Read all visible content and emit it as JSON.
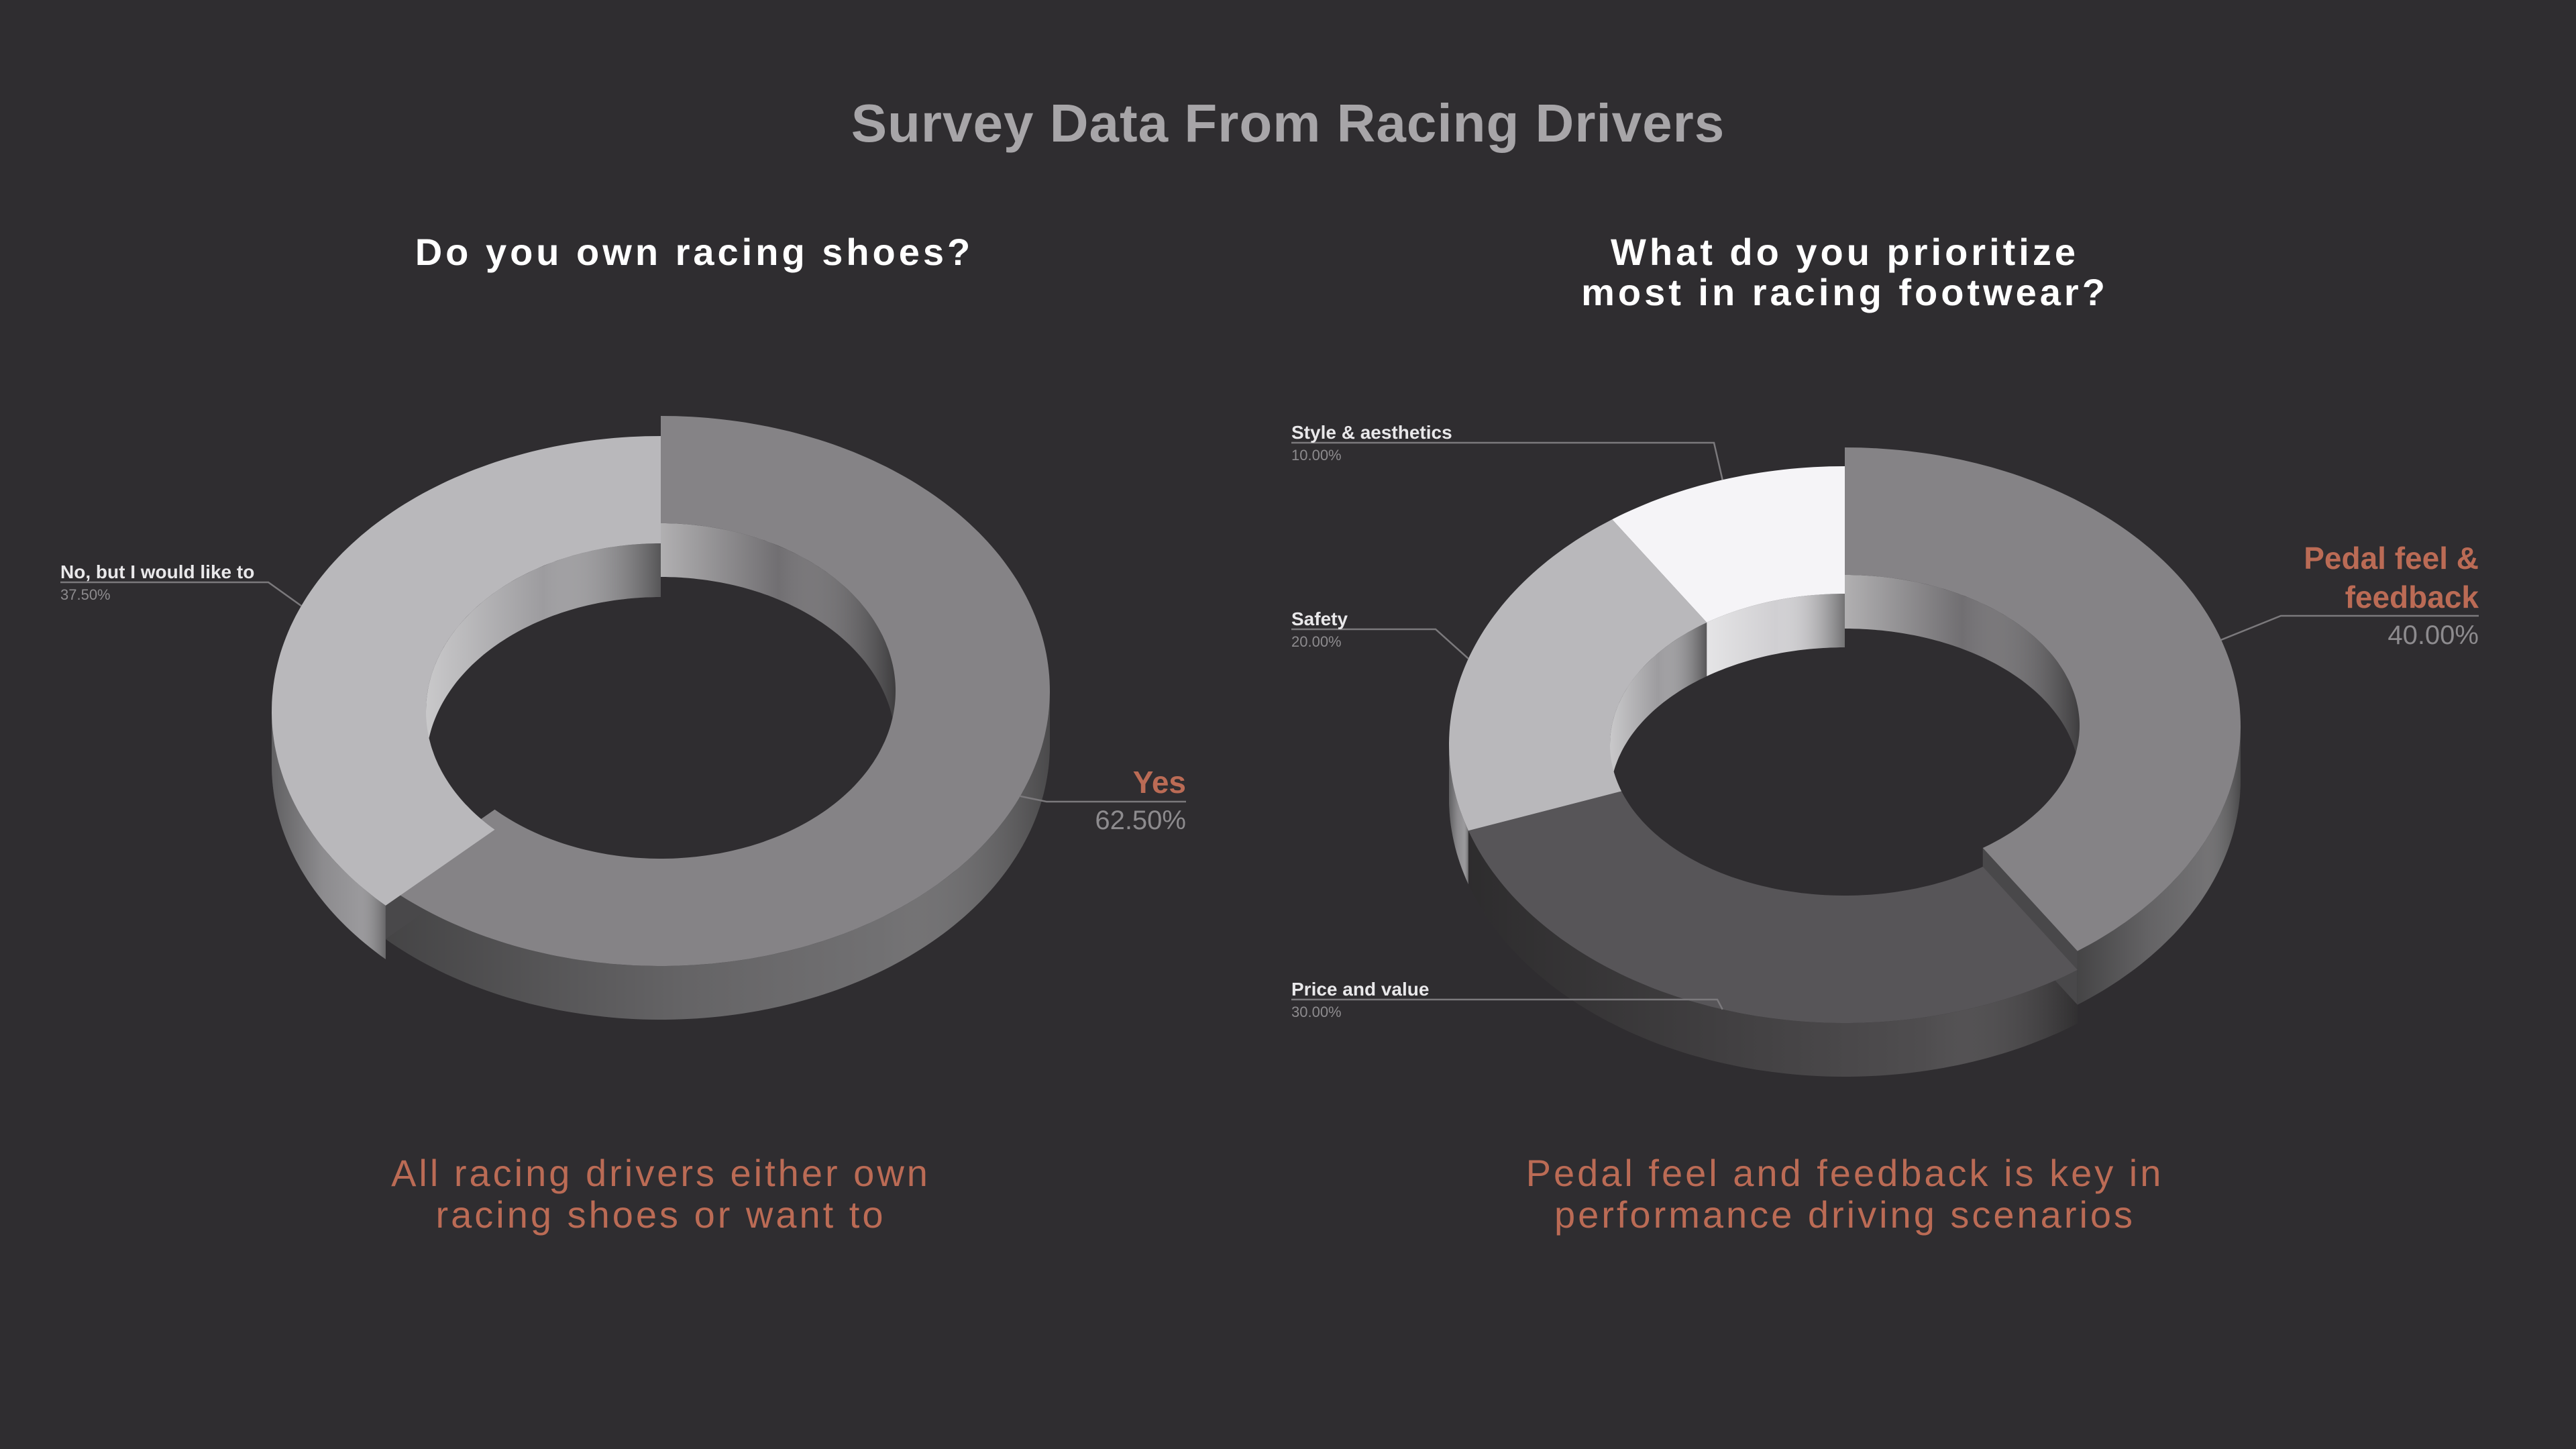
{
  "main_title": "Survey Data From Racing Drivers",
  "colors": {
    "background": "#2f2d30",
    "accent": "#bb6b55",
    "title_gray": "#a7a5a8",
    "label_white": "#ffffff"
  },
  "charts": [
    {
      "title_lines": [
        "Do you own racing shoes?"
      ],
      "takeaway_lines": [
        "All racing drivers either own",
        "racing shoes or want to"
      ]
    },
    {
      "title_lines": [
        "What do you prioritize",
        "most in racing footwear?"
      ],
      "takeaway_lines": [
        "Pedal feel and feedback is key in",
        "performance driving scenarios"
      ]
    }
  ],
  "chart_data": [
    {
      "type": "pie",
      "style": "3d-donut",
      "title": "Do you own racing shoes?",
      "slices": [
        {
          "label": "Yes",
          "value": 62.5,
          "display": "62.50%",
          "color": "#858386",
          "highlight": true
        },
        {
          "label": "No, but I would like to",
          "value": 37.5,
          "display": "37.50%",
          "color": "#b9b8bb",
          "highlight": false
        }
      ]
    },
    {
      "type": "pie",
      "style": "3d-donut",
      "title": "What do you prioritize most in racing footwear?",
      "slices": [
        {
          "label": "Pedal feel & feedback",
          "value": 40,
          "display": "40.00%",
          "color": "#858386",
          "highlight": true
        },
        {
          "label": "Price and value",
          "value": 30,
          "display": "30.00%",
          "color": "#575558",
          "highlight": false
        },
        {
          "label": "Safety",
          "value": 20,
          "display": "20.00%",
          "color": "#b9b8bb",
          "highlight": false
        },
        {
          "label": "Style & aesthetics",
          "value": 10,
          "display": "10.00%",
          "color": "#f5f4f7",
          "highlight": false
        }
      ]
    }
  ]
}
